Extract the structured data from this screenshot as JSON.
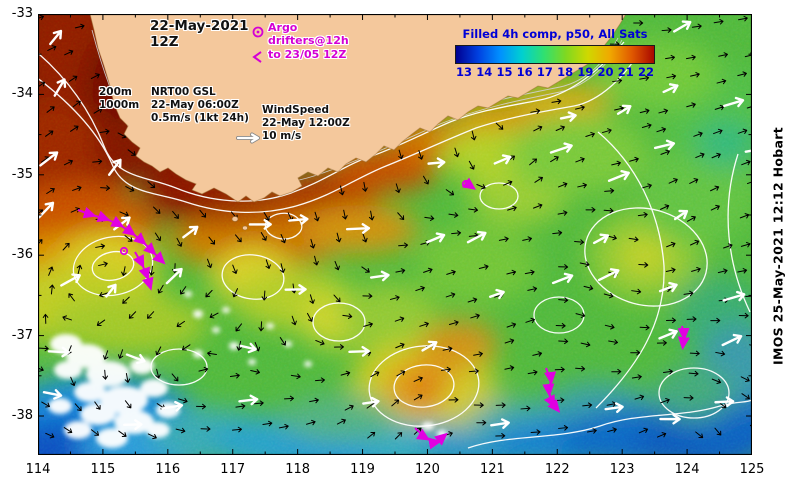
{
  "header": {
    "date_line1": "22-May-2021",
    "date_line2": "12Z"
  },
  "argo_legend": {
    "title": "Argo",
    "line1": "drifters@12h",
    "line2": "to 23/05 12Z"
  },
  "isobath_legend": {
    "depth1": "200m",
    "depth2": "1000m"
  },
  "gsl_legend": {
    "name": "NRT00 GSL",
    "time": "22-May 06:00Z",
    "scale": "0.5m/s (1kt 24h)"
  },
  "wind_legend": {
    "name": "WindSpeed",
    "time": "22-May 12:00Z",
    "scale": "10 m/s"
  },
  "colorbar": {
    "title": "Filled 4h comp, p50, All Sats",
    "labels": [
      "13",
      "14",
      "15",
      "16",
      "17",
      "18",
      "19",
      "20",
      "21",
      "22"
    ],
    "colors": [
      "#000090",
      "#0040e0",
      "#0090ff",
      "#00d0d0",
      "#30e070",
      "#80d820",
      "#d0d800",
      "#f0a800",
      "#e05800",
      "#a80800"
    ]
  },
  "axes": {
    "x": [
      "114",
      "115",
      "116",
      "117",
      "118",
      "119",
      "120",
      "121",
      "122",
      "123",
      "124",
      "125"
    ],
    "y": [
      "-33",
      "-34",
      "-35",
      "-36",
      "-37",
      "-38"
    ]
  },
  "credit": "IMOS 25-May-2021 12:12 Hobart",
  "colors": {
    "magenta": "#e100e1",
    "land": "#f4c89c",
    "legend_blue": "#0000d6"
  },
  "drifters": {
    "tracks": [
      [
        [
          40,
          196
        ],
        [
          54,
          201
        ],
        [
          68,
          205
        ],
        [
          82,
          211
        ],
        [
          94,
          219
        ],
        [
          105,
          228
        ],
        [
          115,
          238
        ],
        [
          124,
          247
        ]
      ],
      [
        [
          97,
          238
        ],
        [
          104,
          250
        ],
        [
          109,
          262
        ],
        [
          112,
          272
        ]
      ],
      [
        [
          427,
          168
        ],
        [
          434,
          173
        ]
      ],
      [
        [
          377,
          414
        ],
        [
          388,
          424
        ],
        [
          399,
          428
        ],
        [
          406,
          422
        ]
      ],
      [
        [
          508,
          354
        ],
        [
          513,
          366
        ],
        [
          511,
          378
        ],
        [
          515,
          390
        ],
        [
          519,
          395
        ]
      ],
      [
        [
          644,
          312
        ],
        [
          646,
          322
        ],
        [
          645,
          331
        ]
      ]
    ],
    "argo_points": [
      [
        86,
        237
      ],
      [
        428,
        170
      ]
    ]
  },
  "chart_data": {
    "type": "heatmap",
    "title": "Filled 4h comp, p50, All Sats",
    "x_ticks": [
      114,
      115,
      116,
      117,
      118,
      119,
      120,
      121,
      122,
      123,
      124,
      125
    ],
    "y_ticks": [
      -33,
      -34,
      -35,
      -36,
      -37,
      -38
    ],
    "colorbar_values": [
      13,
      14,
      15,
      16,
      17,
      18,
      19,
      20,
      21,
      22
    ],
    "overlays": [
      "Argo drifters@12h to 23/05 12Z",
      "NRT00 GSL 22-May 06:00Z 0.5m/s (1kt 24h)",
      "WindSpeed 22-May 12:00Z 10 m/s",
      "200m / 1000m isobaths"
    ],
    "datetime_shown": "22-May-2021 12Z",
    "credit": "IMOS 25-May-2021 12:12 Hobart"
  }
}
